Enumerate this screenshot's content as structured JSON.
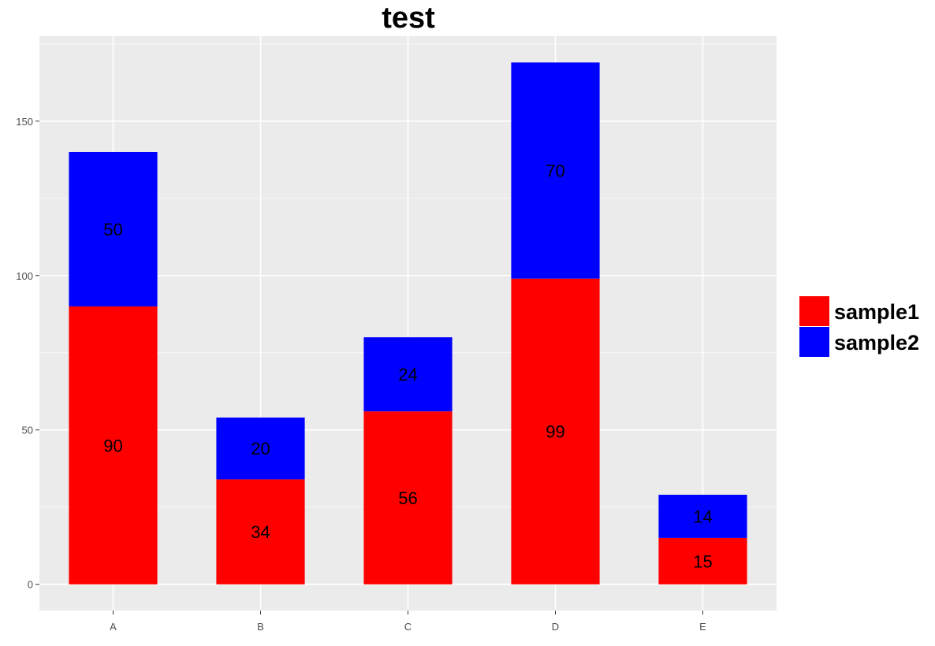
{
  "chart_data": {
    "type": "bar",
    "stacked": true,
    "title": "test",
    "xlabel": "",
    "ylabel": "",
    "categories": [
      "A",
      "B",
      "C",
      "D",
      "E"
    ],
    "series": [
      {
        "name": "sample1",
        "color": "#ff0000",
        "values": [
          90,
          34,
          56,
          99,
          15
        ]
      },
      {
        "name": "sample2",
        "color": "#0000ff",
        "values": [
          50,
          20,
          24,
          70,
          14
        ]
      }
    ],
    "y_ticks": [
      0,
      50,
      100,
      150
    ],
    "ylim": [
      -8.5,
      177.5
    ],
    "grid": true,
    "legend_position": "right",
    "panel_background": "#ebebeb",
    "gridline_color": "#ffffff"
  }
}
